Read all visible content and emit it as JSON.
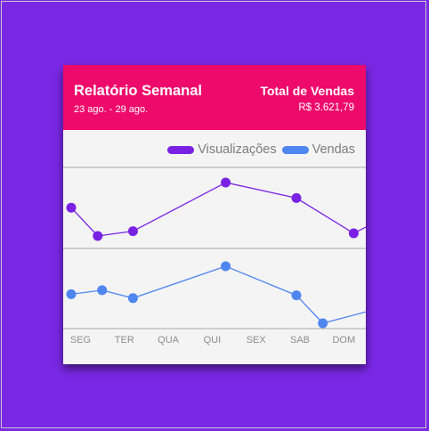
{
  "card": {
    "title": "Relatório Semanal",
    "date_range": "23 ago. - 29 ago.",
    "total_label": "Total de Vendas",
    "total_value": "R$ 3.621,79"
  },
  "colors": {
    "background": "#7b28e6",
    "header": "#ee0a6b",
    "visualizacoes": "#7a22e4",
    "vendas": "#4f86f0",
    "panel": "#f4f4f4"
  },
  "chart_data": {
    "type": "line",
    "categories": [
      "SEG",
      "TER",
      "QUA",
      "QUI",
      "SEX",
      "SAB",
      "DOM"
    ],
    "legend_position": "top-right",
    "series": [
      {
        "name": "Visualizações",
        "color": "#7a22e4",
        "points": [
          {
            "x": 0,
            "y": 0.53
          },
          {
            "x": 0.6,
            "y": 0.0
          },
          {
            "x": 1.4,
            "y": 0.09
          },
          {
            "x": 3.5,
            "y": 1.0
          },
          {
            "x": 5.1,
            "y": 0.71
          },
          {
            "x": 6.4,
            "y": 0.05
          },
          {
            "x": 7.8,
            "y": 0.64
          }
        ]
      },
      {
        "name": "Vendas",
        "color": "#4f86f0",
        "points": [
          {
            "x": 0,
            "y": 0.51
          },
          {
            "x": 0.7,
            "y": 0.58
          },
          {
            "x": 1.4,
            "y": 0.44
          },
          {
            "x": 3.5,
            "y": 1.0
          },
          {
            "x": 5.1,
            "y": 0.49
          },
          {
            "x": 5.7,
            "y": 0.0
          },
          {
            "x": 7.8,
            "y": 0.43
          }
        ]
      }
    ]
  }
}
